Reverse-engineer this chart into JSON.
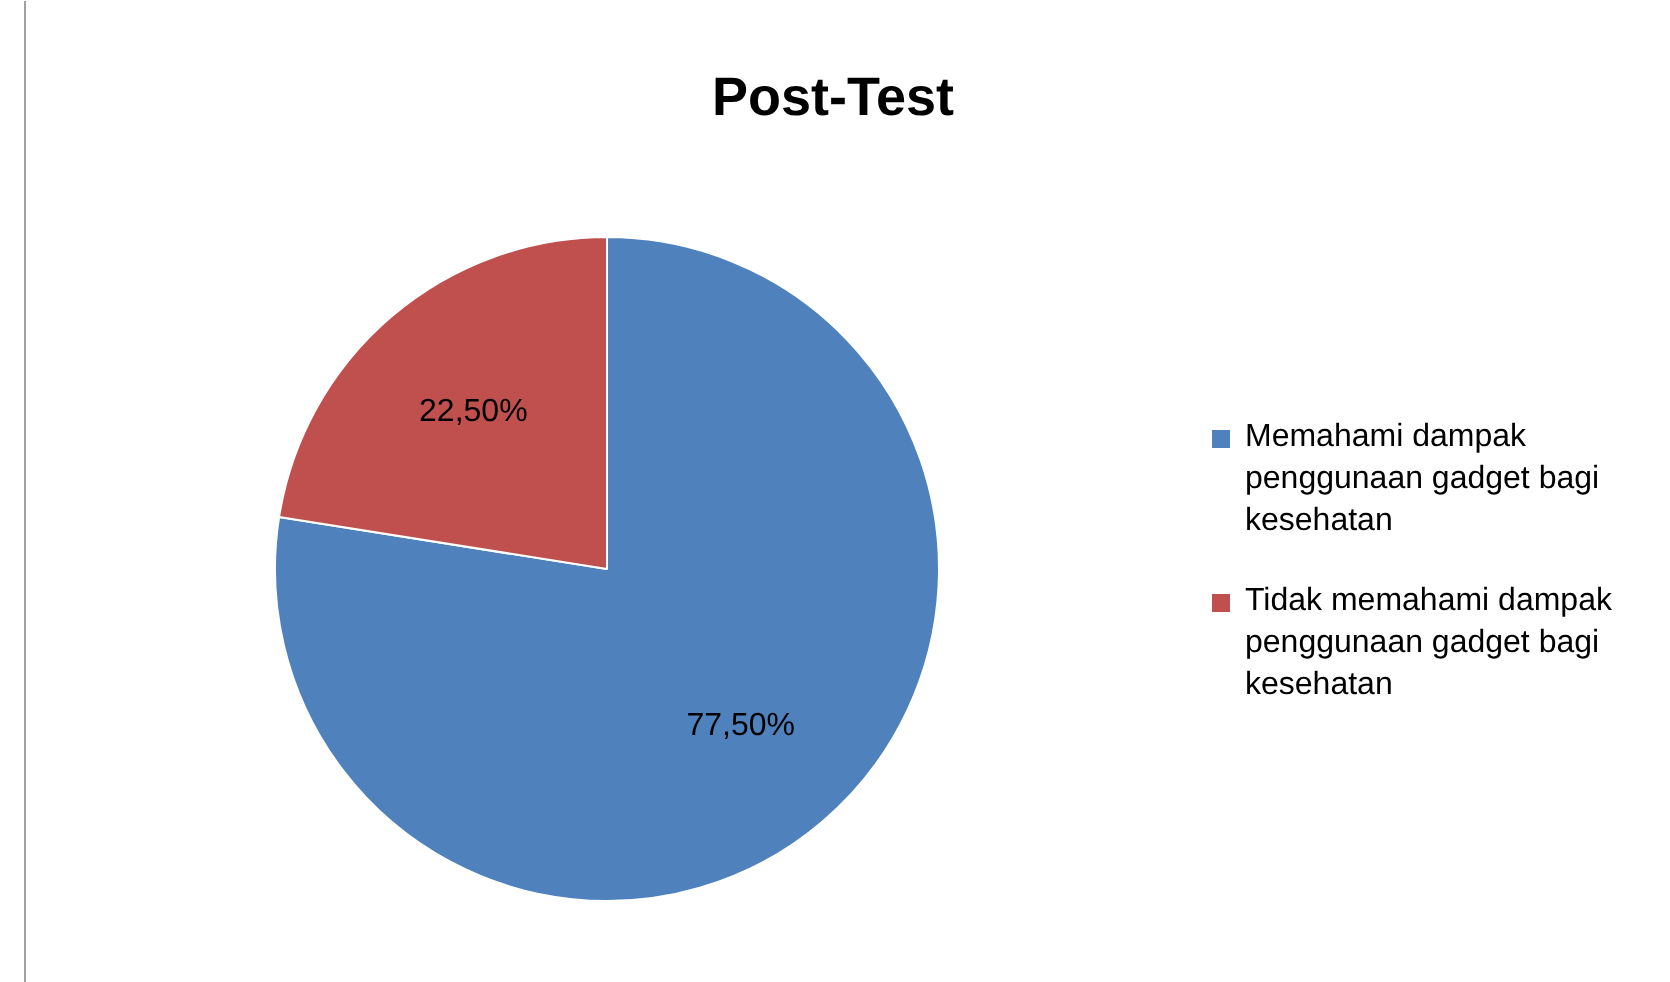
{
  "chart_data": {
    "type": "pie",
    "title": "Post-Test",
    "categories": [
      "Memahami dampak penggunaan gadget bagi kesehatan",
      "Tidak memahami dampak penggunaan gadget bagi kesehatan"
    ],
    "values": [
      77.5,
      22.5
    ],
    "colors": [
      "#4f81bd",
      "#c0504d"
    ],
    "value_labels": [
      "77,50%",
      "22,50%"
    ],
    "legend": "right"
  }
}
